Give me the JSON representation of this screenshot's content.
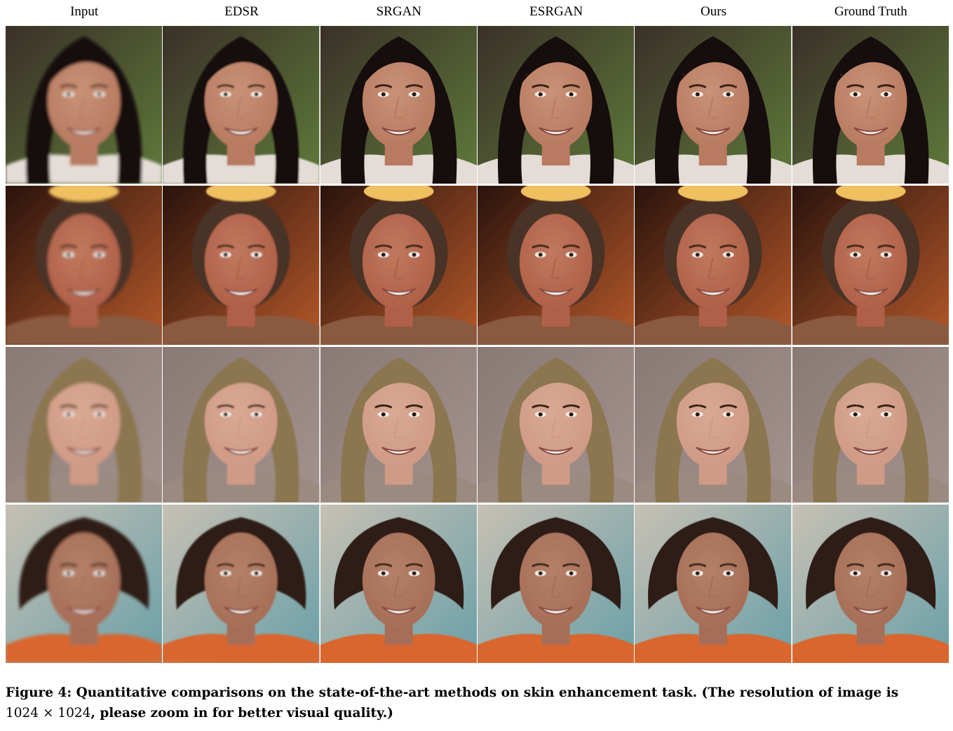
{
  "figure": {
    "columns": [
      "Input",
      "EDSR",
      "SRGAN",
      "ESRGAN",
      "Ours",
      "Ground Truth"
    ],
    "rows": [
      {
        "subject": "woman-dark-hair",
        "bg": "#3a3028",
        "bg2": "#5f7a3a",
        "hair": "#120d0b",
        "skin": "#c89276",
        "cheek": "#b87a60",
        "shirt": "#e4dcd6"
      },
      {
        "subject": "man-balding",
        "bg": "#2a130c",
        "bg2": "#b5582a",
        "hair": "#4a3226",
        "skin": "#c0795e",
        "cheek": "#b06048",
        "shirt": "#8a5a40"
      },
      {
        "subject": "woman-blonde",
        "bg": "#8a7a76",
        "bg2": "#a3928d",
        "hair": "#8c7650",
        "skin": "#d9a994",
        "cheek": "#cf9a86",
        "shirt": "#9a8a80"
      },
      {
        "subject": "older-woman",
        "bg": "#c7c0b4",
        "bg2": "#6aa0a8",
        "hair": "#2f1f18",
        "skin": "#b48068",
        "cheek": "#a66e58",
        "shirt": "#d8662e"
      }
    ],
    "caption": {
      "label": "Figure 4:",
      "line1": " Quantitative comparisons on the state-of-the-art methods on skin enhancement task. (The resolution of image is",
      "math": "1024 × 1024",
      "line2": ", please zoom in for better visual quality.)"
    }
  }
}
